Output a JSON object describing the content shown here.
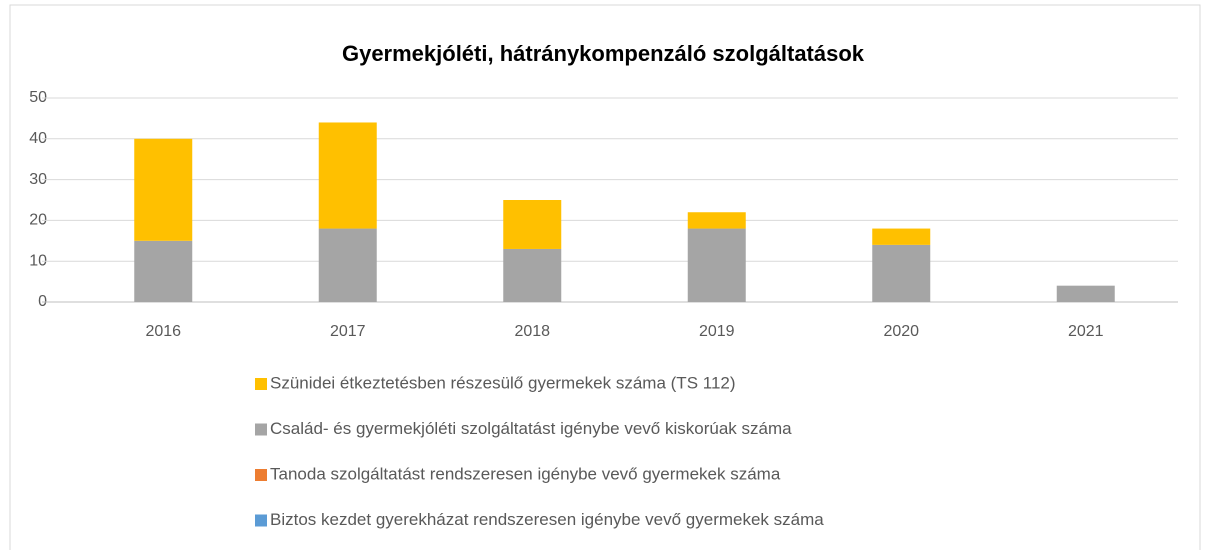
{
  "chart_data": {
    "type": "bar",
    "stacked": true,
    "title": "Gyermekjóléti, hátránykompenzáló szolgáltatások",
    "categories": [
      "2016",
      "2017",
      "2018",
      "2019",
      "2020",
      "2021"
    ],
    "series": [
      {
        "name": "Szünidei étkeztetésben részesülő gyermekek száma (TS 112)",
        "color": "#ffc000",
        "values": [
          25,
          26,
          12,
          4,
          4,
          0
        ]
      },
      {
        "name": "Család- és gyermekjóléti szolgáltatást igénybe vevő kiskorúak száma",
        "color": "#a5a5a5",
        "values": [
          15,
          18,
          13,
          18,
          14,
          4
        ]
      },
      {
        "name": "Tanoda szolgáltatást rendszeresen igénybe vevő gyermekek száma",
        "color": "#ed7d31",
        "values": [
          0,
          0,
          0,
          0,
          0,
          0
        ]
      },
      {
        "name": "Biztos kezdet gyerekházat rendszeresen igénybe vevő gyermekek száma",
        "color": "#5b9bd5",
        "values": [
          0,
          0,
          0,
          0,
          0,
          0
        ]
      }
    ],
    "ylim": [
      0,
      50
    ],
    "yticks": [
      0,
      10,
      20,
      30,
      40,
      50
    ],
    "grid": true,
    "legend": "bottom"
  }
}
